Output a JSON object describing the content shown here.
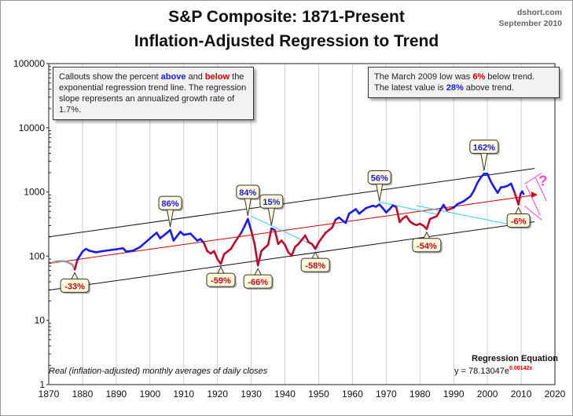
{
  "header": {
    "title_line1": "S&P Composite: 1871-Present",
    "title_line2": "Inflation-Adjusted Regression to Trend",
    "source": "dshort.com",
    "date": "September 2010"
  },
  "info_box_left": {
    "p1": "Callouts show the percent ",
    "above": "above",
    "p2": " and ",
    "below": "below",
    "p3": " the exponential regression trend line. The regression slope represents an annualized growth rate of 1.7%."
  },
  "info_box_right": {
    "p1": "The March 2009 low was ",
    "low_pct": "6%",
    "p2": " below trend.",
    "p3": "The latest value is ",
    "latest_pct": "28%",
    "p4": " above trend."
  },
  "footnote": "Real (inflation-adjusted) monthly averages of daily closes",
  "regression": {
    "label": "Regression Equation",
    "eq_prefix": "y = 78.13047e",
    "eq_exponent": "0.00142x"
  },
  "question_mark": "?",
  "colors": {
    "above": "#1a1aee",
    "below": "#bb0a2a",
    "pre": "#999999",
    "trend": "#cc0000",
    "channel": "#111111",
    "cyan": "#33ccee",
    "magenta": "#ff44cc",
    "callout_fill": "#fffbd8"
  },
  "chart_data": {
    "type": "line",
    "title": "S&P Composite: 1871-Present\nInflation-Adjusted Regression to Trend",
    "x_ticks": [
      1870,
      1880,
      1890,
      1900,
      1910,
      1920,
      1930,
      1940,
      1950,
      1960,
      1970,
      1980,
      1990,
      2000,
      2010,
      2020
    ],
    "y_ticks": [
      1,
      10,
      100,
      1000,
      10000,
      100000
    ],
    "y_tick_labels": [
      "1",
      "10",
      "100",
      "1000",
      "10000",
      "100000"
    ],
    "xlim": [
      1870,
      2020
    ],
    "ylim": [
      1,
      100000
    ],
    "y_scale": "log",
    "grid": "vertical",
    "trend": {
      "a": 78.13047,
      "b": 0.00142
    },
    "channel_factor": 2.6,
    "series": [
      {
        "points": [
          [
            1871,
            80
          ],
          [
            1873,
            84
          ],
          [
            1875,
            83
          ],
          [
            1877,
            74
          ],
          [
            1877.7,
            62
          ]
        ]
      },
      {
        "points": [
          [
            1877.7,
            62
          ],
          [
            1878.5,
            88
          ],
          [
            1880,
            118
          ],
          [
            1881,
            130
          ],
          [
            1882,
            122
          ],
          [
            1884,
            115
          ],
          [
            1886,
            120
          ],
          [
            1888,
            124
          ],
          [
            1890,
            128
          ],
          [
            1892,
            133
          ],
          [
            1893,
            118
          ],
          [
            1895,
            122
          ],
          [
            1897,
            138
          ],
          [
            1899,
            170
          ],
          [
            1901,
            210
          ],
          [
            1902,
            232
          ],
          [
            1903,
            190
          ],
          [
            1905,
            230
          ],
          [
            1906,
            255
          ],
          [
            1907,
            175
          ],
          [
            1909,
            240
          ],
          [
            1910,
            215
          ],
          [
            1912,
            225
          ],
          [
            1914,
            175
          ],
          [
            1915,
            185
          ],
          [
            1916,
            160
          ],
          [
            1917,
            120
          ],
          [
            1918,
            110
          ],
          [
            1919,
            120
          ],
          [
            1920,
            90
          ],
          [
            1921,
            76
          ],
          [
            1922,
            108
          ],
          [
            1924,
            130
          ],
          [
            1925,
            160
          ],
          [
            1927,
            230
          ],
          [
            1928,
            290
          ],
          [
            1929,
            380
          ],
          [
            1930,
            250
          ],
          [
            1931,
            155
          ],
          [
            1932,
            72
          ],
          [
            1933,
            120
          ],
          [
            1934,
            135
          ],
          [
            1935,
            150
          ],
          [
            1936,
            270
          ],
          [
            1937,
            255
          ],
          [
            1938,
            155
          ],
          [
            1939,
            175
          ],
          [
            1940,
            150
          ],
          [
            1941,
            115
          ],
          [
            1942,
            102
          ],
          [
            1943,
            140
          ],
          [
            1944,
            155
          ],
          [
            1946,
            210
          ],
          [
            1947,
            165
          ],
          [
            1948,
            155
          ],
          [
            1949,
            130
          ],
          [
            1950,
            165
          ],
          [
            1952,
            230
          ],
          [
            1954,
            280
          ],
          [
            1955,
            370
          ],
          [
            1956,
            400
          ],
          [
            1958,
            330
          ],
          [
            1959,
            460
          ],
          [
            1961,
            540
          ],
          [
            1962,
            460
          ],
          [
            1964,
            560
          ],
          [
            1966,
            610
          ],
          [
            1967,
            590
          ],
          [
            1968,
            640
          ],
          [
            1969,
            560
          ],
          [
            1970,
            480
          ],
          [
            1971,
            540
          ],
          [
            1972,
            620
          ],
          [
            1973,
            580
          ],
          [
            1974,
            340
          ],
          [
            1975,
            390
          ],
          [
            1976,
            420
          ],
          [
            1977,
            350
          ],
          [
            1978,
            320
          ],
          [
            1979,
            305
          ],
          [
            1980,
            320
          ],
          [
            1981,
            300
          ],
          [
            1982,
            265
          ],
          [
            1983,
            380
          ],
          [
            1985,
            420
          ],
          [
            1986,
            520
          ],
          [
            1987,
            630
          ],
          [
            1988,
            520
          ],
          [
            1990,
            570
          ],
          [
            1991,
            640
          ],
          [
            1993,
            720
          ],
          [
            1995,
            860
          ],
          [
            1996,
            1050
          ],
          [
            1997,
            1380
          ],
          [
            1998,
            1680
          ],
          [
            1999,
            1920
          ],
          [
            2000,
            1920
          ],
          [
            2001,
            1450
          ],
          [
            2002,
            1180
          ],
          [
            2003,
            970
          ],
          [
            2004,
            1180
          ],
          [
            2005,
            1200
          ],
          [
            2006,
            1250
          ],
          [
            2007,
            1350
          ],
          [
            2008,
            1000
          ],
          [
            2009.2,
            640
          ],
          [
            2009.8,
            930
          ],
          [
            2010.3,
            1020
          ],
          [
            2010.7,
            930
          ]
        ]
      }
    ],
    "cyan_lines": [
      [
        [
          1930,
          420
        ],
        [
          1950,
          135
        ]
      ],
      [
        [
          1968,
          700
        ],
        [
          1985,
          450
        ]
      ],
      [
        [
          1979,
          610
        ],
        [
          2007,
          310
        ]
      ]
    ],
    "callouts": [
      {
        "label": "86%",
        "x": 1906,
        "y": 255,
        "kind": "above"
      },
      {
        "label": "84%",
        "x": 1929,
        "y": 380,
        "kind": "above"
      },
      {
        "label": "15%",
        "x": 1936,
        "y": 270,
        "kind": "above"
      },
      {
        "label": "56%",
        "x": 1968,
        "y": 640,
        "kind": "above"
      },
      {
        "label": "162%",
        "x": 1999,
        "y": 1920,
        "kind": "above"
      },
      {
        "label": "-33%",
        "x": 1877.7,
        "y": 62,
        "kind": "below"
      },
      {
        "label": "-59%",
        "x": 1921,
        "y": 76,
        "kind": "below"
      },
      {
        "label": "-66%",
        "x": 1932,
        "y": 72,
        "kind": "below"
      },
      {
        "label": "-58%",
        "x": 1949,
        "y": 130,
        "kind": "below"
      },
      {
        "label": "-54%",
        "x": 1982,
        "y": 265,
        "kind": "below"
      },
      {
        "label": "-6%",
        "x": 2009.2,
        "y": 640,
        "kind": "below"
      }
    ]
  }
}
